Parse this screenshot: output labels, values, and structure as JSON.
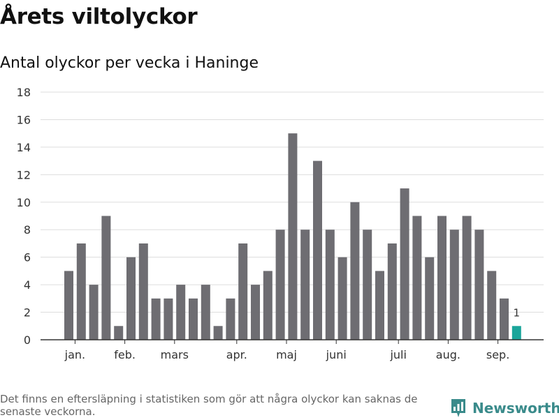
{
  "title": "Årets viltolyckor",
  "subtitle": "Antal olyckor per vecka i Haninge",
  "footnote": "Det finns en eftersläpning i statistiken som gör att några olyckor kan saknas de senaste veckorna.",
  "brand": {
    "name": "Newsworthy",
    "icon": "newsworthy-logo-icon",
    "color": "#3a8b8b"
  },
  "colors": {
    "bar": "#6e6d72",
    "highlight": "#1aa59a",
    "grid": "#dddddd",
    "axis": "#333333"
  },
  "chart_data": {
    "type": "bar",
    "title": "Årets viltolyckor",
    "subtitle": "Antal olyckor per vecka i Haninge",
    "ylim": [
      0,
      18
    ],
    "yticks": [
      0,
      2,
      4,
      6,
      8,
      10,
      12,
      14,
      16,
      18
    ],
    "grid": true,
    "weeks": [
      1,
      2,
      3,
      4,
      5,
      6,
      7,
      8,
      9,
      10,
      11,
      12,
      13,
      14,
      15,
      16,
      17,
      18,
      19,
      20,
      21,
      22,
      23,
      24,
      25,
      26,
      27,
      28,
      29,
      30,
      31,
      32,
      33,
      34,
      35,
      36,
      37
    ],
    "values": [
      5,
      7,
      4,
      9,
      1,
      6,
      7,
      3,
      3,
      4,
      3,
      4,
      1,
      3,
      7,
      4,
      5,
      8,
      15,
      8,
      13,
      8,
      6,
      10,
      8,
      5,
      7,
      11,
      9,
      6,
      9,
      8,
      9,
      8,
      5,
      3,
      1
    ],
    "highlight_index": 36,
    "highlight_label": "1",
    "month_labels": [
      {
        "label": "jan.",
        "week": 1.5
      },
      {
        "label": "feb.",
        "week": 5.5
      },
      {
        "label": "mars",
        "week": 9.5
      },
      {
        "label": "apr.",
        "week": 14.5
      },
      {
        "label": "maj",
        "week": 18.5
      },
      {
        "label": "juni",
        "week": 22.5
      },
      {
        "label": "juli",
        "week": 27.5
      },
      {
        "label": "aug.",
        "week": 31.5
      },
      {
        "label": "sep.",
        "week": 35.5
      }
    ]
  }
}
